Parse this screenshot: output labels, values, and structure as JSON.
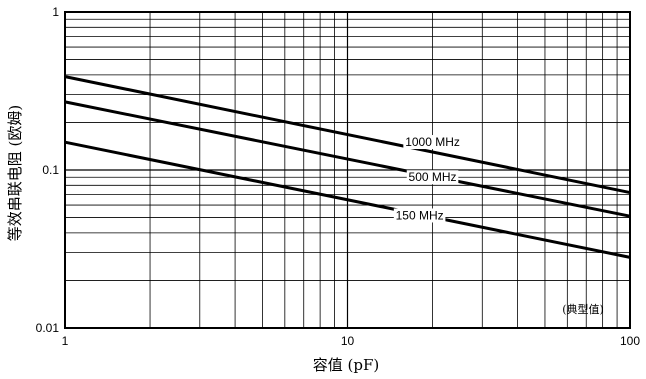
{
  "chart_data": {
    "type": "line",
    "xscale": "log",
    "yscale": "log",
    "xlim": [
      1,
      100
    ],
    "ylim": [
      0.01,
      1
    ],
    "xticks": [
      {
        "value": 1,
        "label": "1"
      },
      {
        "value": 10,
        "label": "10"
      },
      {
        "value": 100,
        "label": "100"
      }
    ],
    "yticks": [
      {
        "value": 0.01,
        "label": "0.01"
      },
      {
        "value": 0.1,
        "label": "0.1"
      },
      {
        "value": 1,
        "label": "1"
      }
    ],
    "xlabel": "容值 (pF)",
    "ylabel": "等效串联电阻 (欧姆)",
    "annotation": "(典型值)",
    "grid": true,
    "series": [
      {
        "name": "1000 MHz",
        "x": [
          1,
          100
        ],
        "y": [
          0.39,
          0.072
        ]
      },
      {
        "name": "500 MHz",
        "x": [
          1,
          100
        ],
        "y": [
          0.27,
          0.051
        ]
      },
      {
        "name": "150 MHz",
        "x": [
          1,
          100
        ],
        "y": [
          0.15,
          0.028
        ]
      }
    ]
  }
}
